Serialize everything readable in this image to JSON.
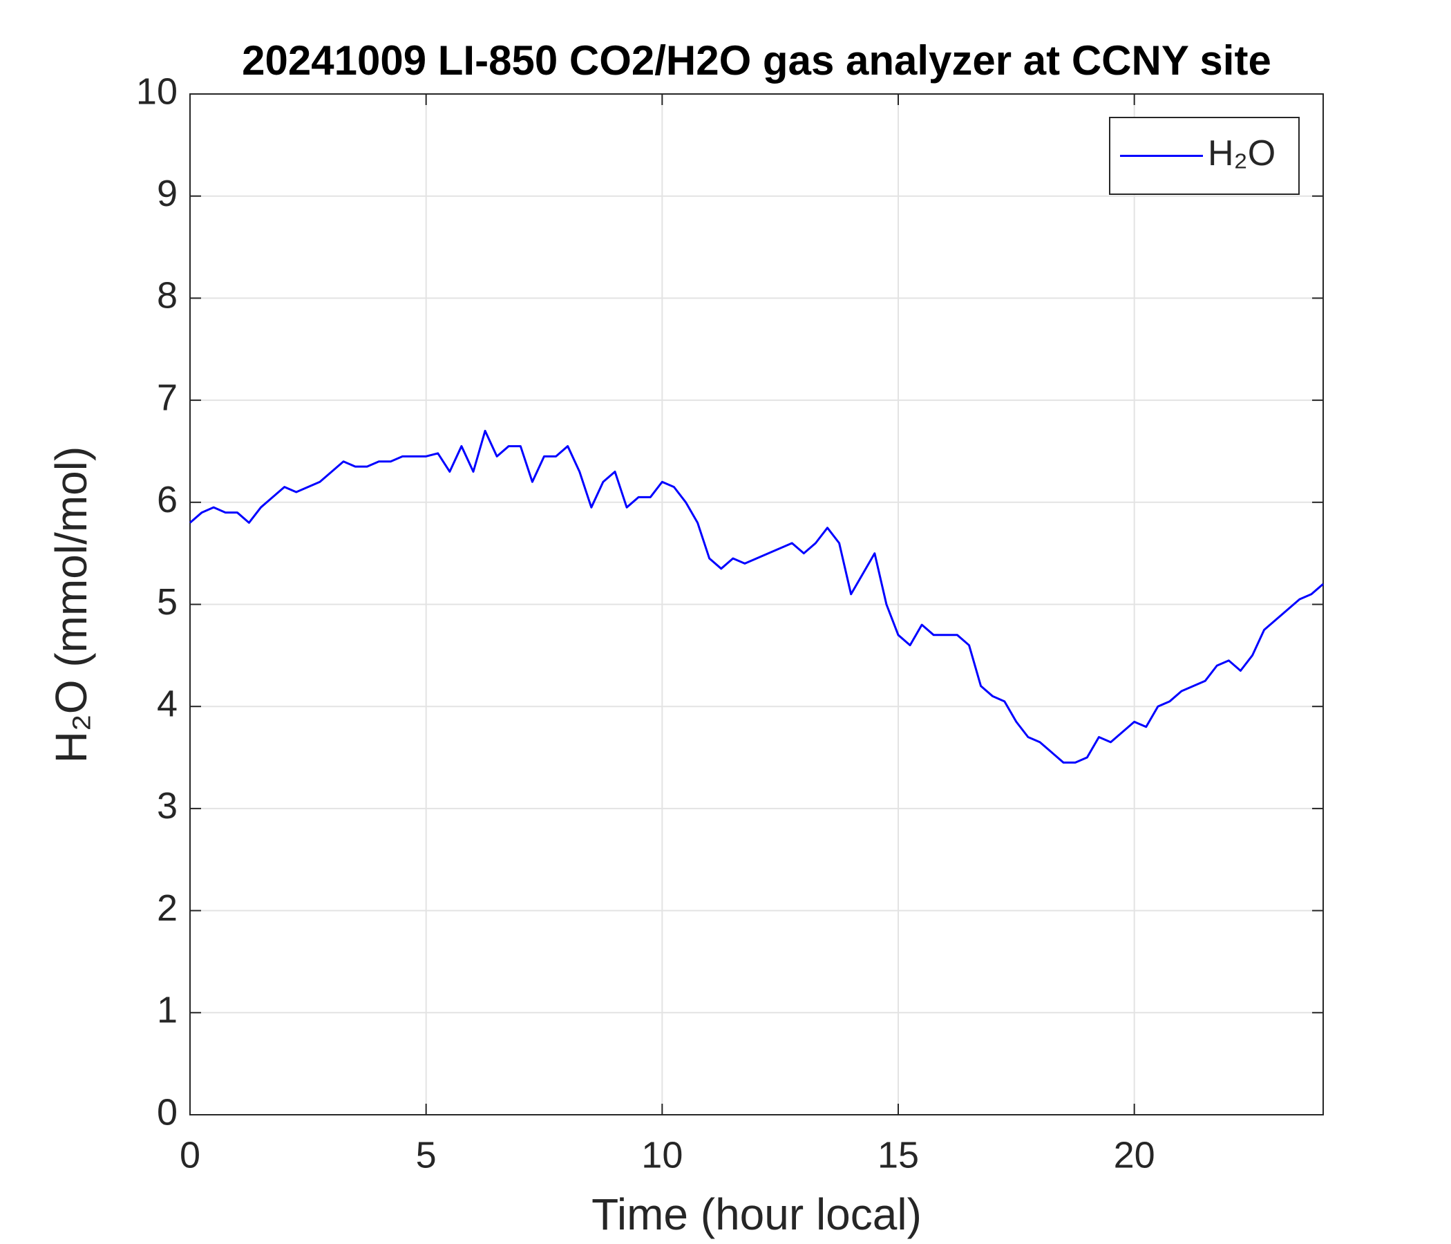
{
  "chart_data": {
    "type": "line",
    "title": "20241009 LI-850 CO2/H2O gas analyzer at CCNY site",
    "x_label": "Time (hour local)",
    "y_label": "H₂O (mmol/mol)",
    "x": [
      0,
      0.25,
      0.5,
      0.75,
      1,
      1.25,
      1.5,
      1.75,
      2,
      2.25,
      2.5,
      2.75,
      3,
      3.25,
      3.5,
      3.75,
      4,
      4.25,
      4.5,
      4.75,
      5,
      5.25,
      5.5,
      5.75,
      6,
      6.25,
      6.5,
      6.75,
      7,
      7.25,
      7.5,
      7.75,
      8,
      8.25,
      8.5,
      8.75,
      9,
      9.25,
      9.5,
      9.75,
      10,
      10.25,
      10.5,
      10.75,
      11,
      11.25,
      11.5,
      11.75,
      12,
      12.25,
      12.5,
      12.75,
      13,
      13.25,
      13.5,
      13.75,
      14,
      14.25,
      14.5,
      14.75,
      15,
      15.25,
      15.5,
      15.75,
      16,
      16.25,
      16.5,
      16.75,
      17,
      17.25,
      17.5,
      17.75,
      18,
      18.25,
      18.5,
      18.75,
      19,
      19.25,
      19.5,
      19.75,
      20,
      20.25,
      20.5,
      20.75,
      21,
      21.25,
      21.5,
      21.75,
      22,
      22.25,
      22.5,
      22.75,
      23,
      23.25,
      23.5,
      23.75,
      24
    ],
    "series": [
      {
        "name": "H₂O",
        "color": "#0000ff",
        "values": [
          5.8,
          5.9,
          5.95,
          5.9,
          5.9,
          5.8,
          5.95,
          6.05,
          6.15,
          6.1,
          6.15,
          6.2,
          6.3,
          6.4,
          6.35,
          6.35,
          6.4,
          6.4,
          6.45,
          6.45,
          6.45,
          6.48,
          6.3,
          6.55,
          6.3,
          6.7,
          6.45,
          6.55,
          6.55,
          6.2,
          6.45,
          6.45,
          6.55,
          6.3,
          5.95,
          6.2,
          6.3,
          5.95,
          6.05,
          6.05,
          6.2,
          6.15,
          6.0,
          5.8,
          5.45,
          5.35,
          5.45,
          5.4,
          5.45,
          5.5,
          5.55,
          5.6,
          5.5,
          5.6,
          5.75,
          5.6,
          5.1,
          5.3,
          5.5,
          5.0,
          4.7,
          4.6,
          4.8,
          4.7,
          4.7,
          4.7,
          4.6,
          4.2,
          4.1,
          4.05,
          3.85,
          3.7,
          3.65,
          3.55,
          3.45,
          3.45,
          3.5,
          3.7,
          3.65,
          3.75,
          3.85,
          3.8,
          4.0,
          4.05,
          4.15,
          4.2,
          4.25,
          4.4,
          4.45,
          4.35,
          4.5,
          4.75,
          4.85,
          4.95,
          5.05,
          5.1,
          5.2
        ]
      }
    ],
    "xlim": [
      0,
      24
    ],
    "xticks": [
      0,
      5,
      10,
      15,
      20
    ],
    "ylim": [
      0,
      10
    ],
    "yticks": [
      0,
      1,
      2,
      3,
      4,
      5,
      6,
      7,
      8,
      9,
      10
    ],
    "grid": true,
    "legend": "upper right"
  }
}
